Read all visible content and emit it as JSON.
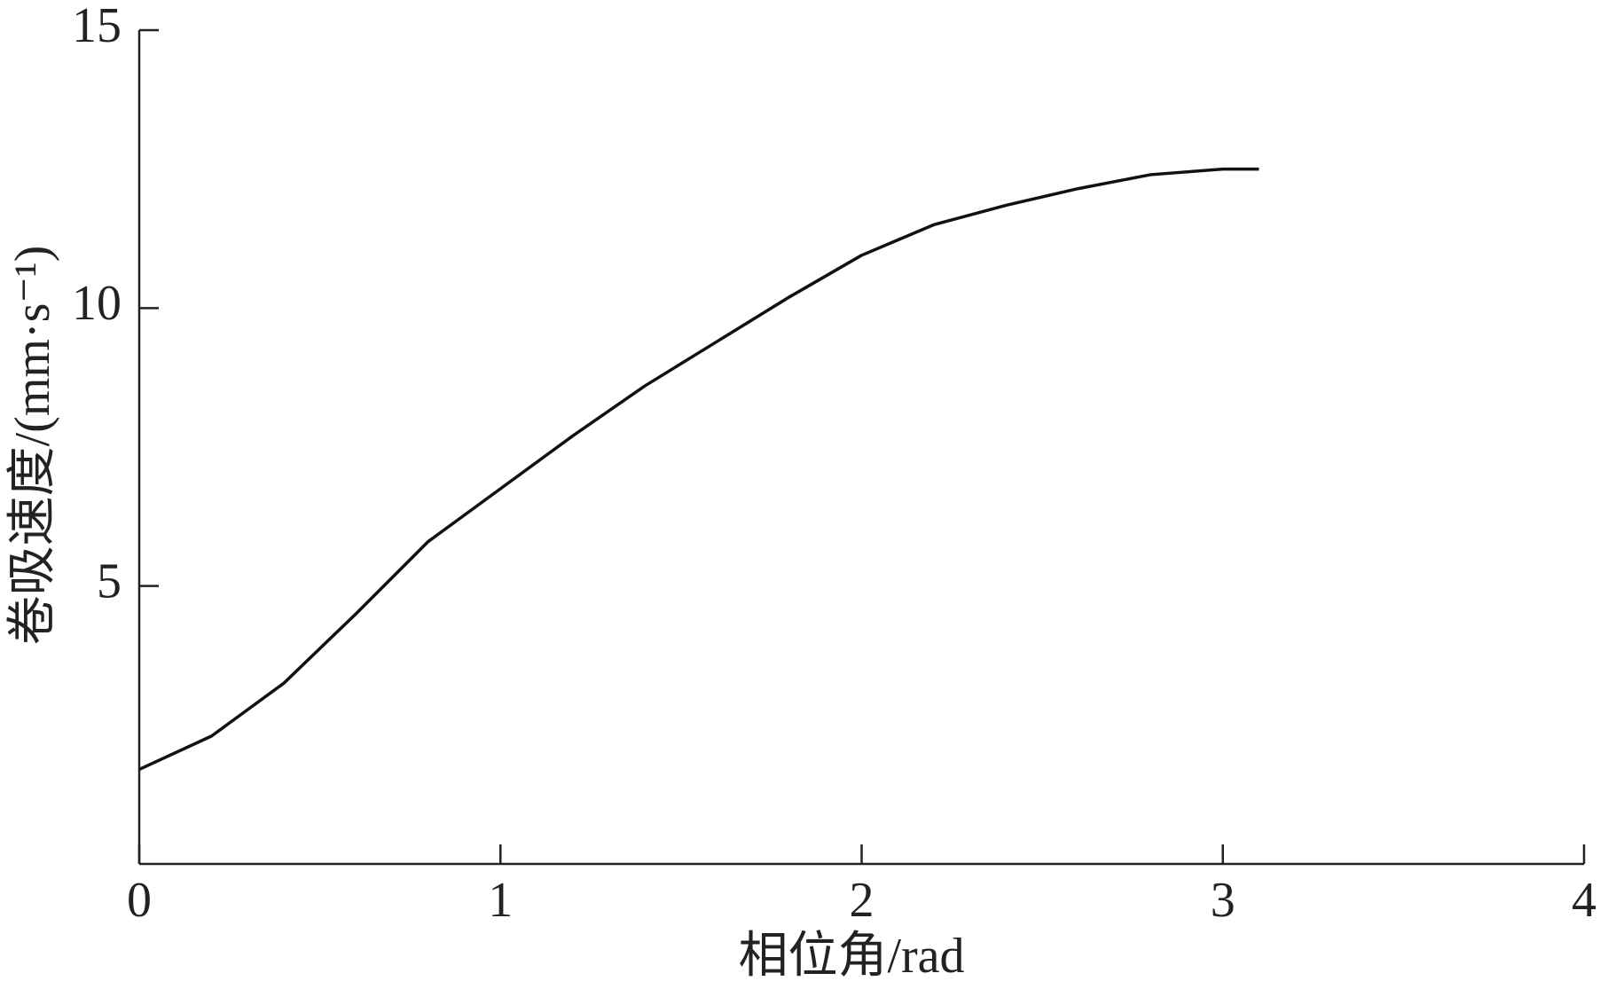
{
  "chart_data": {
    "type": "line",
    "x_label": "相位角/rad",
    "y_label": "卷吸速度/(mm·s⁻¹)",
    "x": [
      0,
      0.2,
      0.4,
      0.6,
      0.8,
      1.0,
      1.2,
      1.4,
      1.6,
      1.8,
      2.0,
      2.2,
      2.4,
      2.6,
      2.8,
      3.0,
      3.1
    ],
    "series": [
      {
        "color": "#111111",
        "values": [
          1.7,
          2.3,
          3.25,
          4.5,
          5.8,
          6.75,
          7.7,
          8.6,
          9.4,
          10.2,
          10.95,
          11.5,
          11.85,
          12.15,
          12.4,
          12.5,
          12.5
        ]
      }
    ],
    "xlim": [
      0,
      4
    ],
    "xticks": [
      0,
      1,
      2,
      3,
      4
    ],
    "ylim": [
      0,
      15
    ],
    "yticks": [
      5,
      10,
      15
    ],
    "grid": false
  }
}
